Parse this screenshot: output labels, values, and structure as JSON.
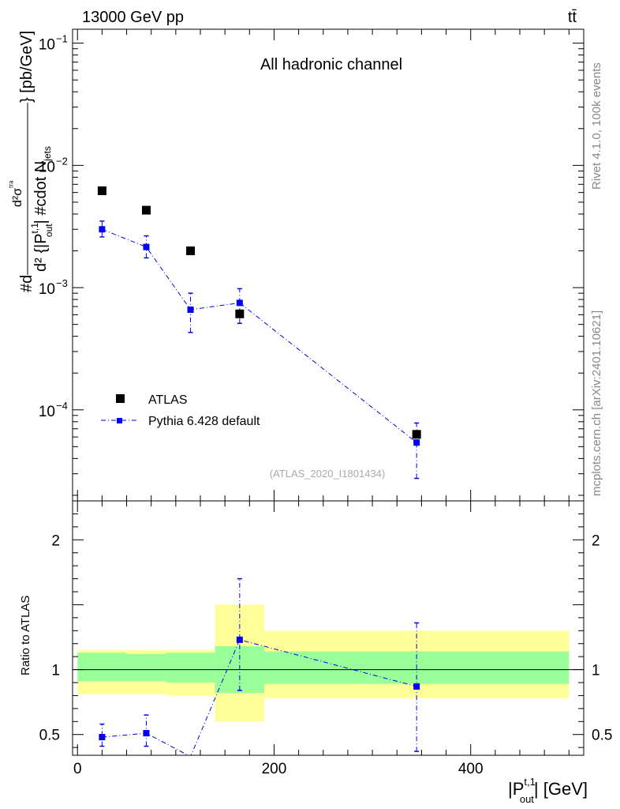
{
  "header": {
    "energy_label": "13000 GeV pp",
    "process_label": "tt̄"
  },
  "side_labels": {
    "rivet": "Rivet 4.1.0,  100k events",
    "mcplots": "mcplots.cern.ch [arXiv:2401.10621]"
  },
  "colors": {
    "data": "#000000",
    "mc": "#0000ee",
    "band_inner": "#99ff99",
    "band_outer": "#ffff99"
  },
  "chart_data": [
    {
      "type": "scatter",
      "panel": "main",
      "title": "All hadronic channel",
      "analysis_id": "(ATLAS_2020_I1801434)",
      "ylabel": {
        "part1": "#d",
        "part2": "d²σ",
        "part3": "ᵗʳᵃ",
        "part4": "d² {|P",
        "part5": "t,1",
        "part6": "out",
        "part7": "| #cdot N",
        "part8": "jets",
        "part9": "} [pb/GeV]"
      },
      "yscale": "log",
      "ylim": [
        1.8e-05,
        0.13
      ],
      "xlim": [
        -5,
        515
      ],
      "ytick_labels": [
        {
          "value": 0.1,
          "mantissa": "10",
          "exp": "−1"
        },
        {
          "value": 0.01,
          "mantissa": "10",
          "exp": "−2"
        },
        {
          "value": 0.001,
          "mantissa": "10",
          "exp": "−3"
        },
        {
          "value": 0.0001,
          "mantissa": "10",
          "exp": "−4"
        }
      ],
      "legend": {
        "position": "bottom-left",
        "entries": [
          "ATLAS",
          "Pythia 6.428 default"
        ]
      },
      "series": [
        {
          "name": "ATLAS",
          "marker": "square",
          "x": [
            25,
            70,
            115,
            165,
            345
          ],
          "y": [
            0.0062,
            0.0043,
            0.002,
            0.00061,
            6.3e-05
          ]
        },
        {
          "name": "Pythia 6.428 default",
          "marker": "square",
          "line": "dash-dot",
          "x": [
            25,
            70,
            115,
            165,
            345
          ],
          "y": [
            0.003,
            0.00215,
            0.00066,
            0.00075,
            5.4e-05
          ],
          "y_err_low": [
            0.0026,
            0.00175,
            0.00043,
            0.00051,
            2.75e-05
          ],
          "y_err_high": [
            0.0035,
            0.00265,
            0.0009,
            0.00098,
            7.8e-05
          ]
        }
      ]
    },
    {
      "type": "line",
      "panel": "ratio",
      "ylabel": "Ratio to ATLAS",
      "ylim": [
        0.34,
        2.3
      ],
      "xlim": [
        -5,
        515
      ],
      "xlabel": {
        "prefix": "|P",
        "sup": "t,1",
        "sub": "out",
        "suffix": "| [GeV]"
      },
      "ytick_labels": [
        {
          "value": 0.5,
          "label": "0.5"
        },
        {
          "value": 1,
          "label": "1"
        },
        {
          "value": 2,
          "label": "2"
        }
      ],
      "xtick_labels": [
        {
          "value": 0,
          "label": "0"
        },
        {
          "value": 200,
          "label": "200"
        },
        {
          "value": 400,
          "label": "400"
        }
      ],
      "bins": [
        {
          "lo": 0,
          "hi": 50,
          "inner": [
            0.91,
            1.13
          ],
          "outer": [
            0.81,
            1.15
          ]
        },
        {
          "lo": 50,
          "hi": 90,
          "inner": [
            0.91,
            1.12
          ],
          "outer": [
            0.81,
            1.15
          ]
        },
        {
          "lo": 90,
          "hi": 140,
          "inner": [
            0.9,
            1.13
          ],
          "outer": [
            0.8,
            1.15
          ]
        },
        {
          "lo": 140,
          "hi": 190,
          "inner": [
            0.82,
            1.18
          ],
          "outer": [
            0.6,
            1.5
          ]
        },
        {
          "lo": 190,
          "hi": 500,
          "inner": [
            0.89,
            1.14
          ],
          "outer": [
            0.78,
            1.3
          ]
        }
      ],
      "series": [
        {
          "name": "Pythia 6.428 default",
          "x": [
            25,
            70,
            115,
            165,
            345
          ],
          "y": [
            0.48,
            0.51,
            0.33,
            1.23,
            0.87
          ],
          "y_err_low": [
            0.41,
            0.41,
            null,
            0.84,
            0.37
          ],
          "y_err_high": [
            0.58,
            0.65,
            null,
            1.7,
            1.36
          ]
        }
      ]
    }
  ]
}
